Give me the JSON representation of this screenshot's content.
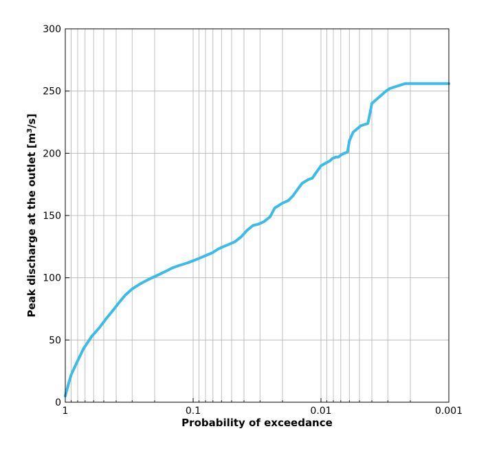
{
  "chart_data": {
    "type": "line",
    "title": "",
    "xlabel": "Probability of exceedance",
    "ylabel_text": "Peak discharge at the outlet [m",
    "ylabel_sup": "3",
    "ylabel_suffix": "/s]",
    "x_scale": "log",
    "x_reversed": true,
    "xlim": [
      1,
      0.001
    ],
    "ylim": [
      0,
      300
    ],
    "x_ticks": [
      {
        "value": 1,
        "label": "1"
      },
      {
        "value": 0.1,
        "label": "0.1"
      },
      {
        "value": 0.01,
        "label": "0.01"
      },
      {
        "value": 0.001,
        "label": "0.001"
      }
    ],
    "y_ticks": [
      {
        "value": 0,
        "label": "0"
      },
      {
        "value": 50,
        "label": "50"
      },
      {
        "value": 100,
        "label": "100"
      },
      {
        "value": 150,
        "label": "150"
      },
      {
        "value": 200,
        "label": "200"
      },
      {
        "value": 250,
        "label": "250"
      },
      {
        "value": 300,
        "label": "300"
      }
    ],
    "grid": true,
    "line_color": "#3bbbe8",
    "series": [
      {
        "x": [
          1,
          0.96,
          0.9,
          0.82,
          0.72,
          0.62,
          0.54,
          0.48,
          0.43,
          0.38,
          0.34,
          0.3,
          0.26,
          0.22,
          0.19,
          0.165,
          0.145,
          0.127,
          0.11,
          0.098,
          0.088,
          0.079,
          0.071,
          0.064,
          0.058,
          0.052,
          0.047,
          0.042,
          0.038,
          0.034,
          0.031,
          0.028,
          0.025,
          0.023,
          0.02,
          0.018,
          0.0165,
          0.015,
          0.014,
          0.0125,
          0.0117,
          0.01,
          0.0092,
          0.0085,
          0.0081,
          0.0076,
          0.0073,
          0.0069,
          0.0062,
          0.006,
          0.0056,
          0.0053,
          0.0049,
          0.0046,
          0.0043,
          0.0041,
          0.004,
          0.0031,
          0.0029,
          0.0022,
          0.002,
          0.0019,
          0.00151,
          0.00125,
          0.0012,
          0.00115,
          0.001
        ],
        "y": [
          5,
          12,
          22,
          31,
          43,
          53,
          60,
          67,
          73,
          80,
          86,
          91,
          95,
          99,
          102,
          105,
          108,
          110,
          112,
          114,
          116,
          118,
          120,
          123,
          125,
          127,
          129,
          133,
          138,
          142,
          143,
          145,
          149,
          156,
          160,
          162,
          166,
          172,
          176,
          179,
          180,
          190,
          192,
          194,
          196,
          197,
          197,
          199,
          201,
          210,
          217,
          219,
          222,
          223,
          224,
          234,
          240,
          250,
          252,
          256,
          256,
          256,
          256,
          256,
          256,
          256,
          256
        ]
      }
    ]
  }
}
